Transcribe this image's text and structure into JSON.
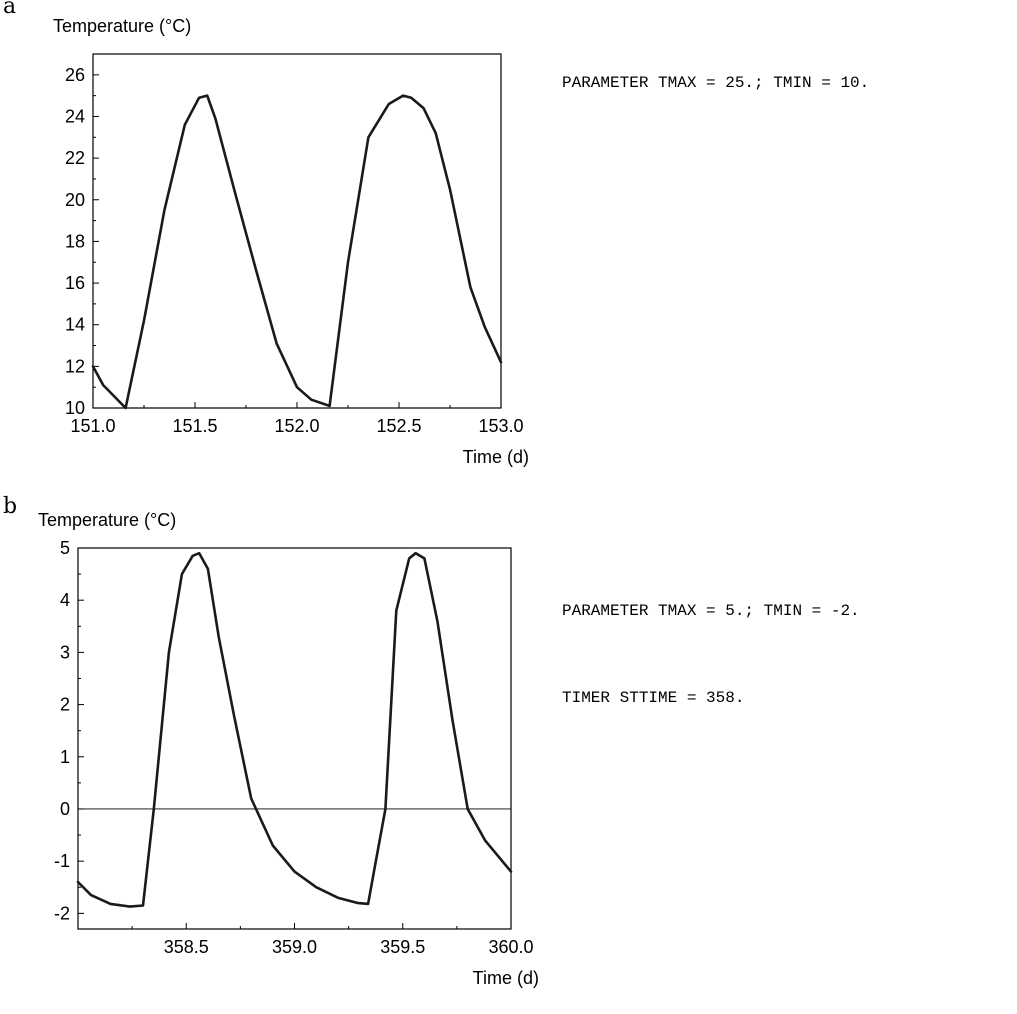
{
  "chart_data": [
    {
      "panel": "a",
      "type": "line",
      "ylabel": "Temperature (°C)",
      "xlabel": "Time (d)",
      "xlim": [
        151.0,
        153.0
      ],
      "ylim": [
        10,
        27
      ],
      "xticks": [
        "151.0",
        "151.5",
        "152.0",
        "152.5",
        "153.0"
      ],
      "xtick_values": [
        151.0,
        151.5,
        152.0,
        152.5,
        153.0
      ],
      "yticks": [
        "10",
        "12",
        "14",
        "16",
        "18",
        "20",
        "22",
        "24",
        "26"
      ],
      "ytick_values": [
        10,
        12,
        14,
        16,
        18,
        20,
        22,
        24,
        26
      ],
      "zero_line": false,
      "series": [
        {
          "x": [
            151.0,
            151.05,
            151.1,
            151.16,
            151.25,
            151.35,
            151.45,
            151.52,
            151.56,
            151.6,
            151.7,
            151.8,
            151.9,
            152.0,
            152.07,
            152.16,
            152.25,
            152.35,
            152.45,
            152.52,
            152.56,
            152.62,
            152.68,
            152.75,
            152.85,
            152.92,
            153.0
          ],
          "y": [
            12.0,
            11.1,
            10.6,
            10.0,
            14.2,
            19.5,
            23.6,
            24.9,
            25.0,
            23.9,
            20.2,
            16.6,
            13.1,
            11.0,
            10.4,
            10.1,
            17.0,
            23.0,
            24.6,
            25.0,
            24.9,
            24.4,
            23.2,
            20.5,
            15.8,
            13.9,
            12.2
          ]
        }
      ],
      "annotation": [
        "PARAMETER TMAX = 25.; TMIN = 10."
      ]
    },
    {
      "panel": "b",
      "type": "line",
      "ylabel": "Temperature (°C)",
      "xlabel": "Time (d)",
      "xlim": [
        358.0,
        360.0
      ],
      "ylim": [
        -2.3,
        5.0
      ],
      "xticks": [
        "358.5",
        "359.0",
        "359.5",
        "360.0"
      ],
      "xtick_values": [
        358.5,
        359.0,
        359.5,
        360.0
      ],
      "yticks": [
        "-2",
        "-1",
        "0",
        "1",
        "2",
        "3",
        "4",
        "5"
      ],
      "ytick_values": [
        -2,
        -1,
        0,
        1,
        2,
        3,
        4,
        5
      ],
      "zero_line": true,
      "series": [
        {
          "x": [
            358.0,
            358.06,
            358.15,
            358.24,
            358.3,
            358.35,
            358.42,
            358.48,
            358.53,
            358.56,
            358.6,
            358.65,
            358.72,
            358.8,
            358.9,
            359.0,
            359.1,
            359.2,
            359.29,
            359.34,
            359.38,
            359.42,
            359.47,
            359.53,
            359.56,
            359.6,
            359.66,
            359.73,
            359.8,
            359.88,
            360.0
          ],
          "y": [
            -1.4,
            -1.65,
            -1.82,
            -1.87,
            -1.85,
            0.0,
            3.0,
            4.5,
            4.85,
            4.9,
            4.6,
            3.3,
            1.8,
            0.2,
            -0.7,
            -1.2,
            -1.5,
            -1.7,
            -1.8,
            -1.82,
            -0.9,
            0.0,
            3.8,
            4.8,
            4.9,
            4.8,
            3.6,
            1.7,
            0.0,
            -0.6,
            -1.2
          ]
        }
      ],
      "annotation": [
        "PARAMETER TMAX = 5.; TMIN = -2.",
        "TIMER STTIME = 358."
      ]
    }
  ]
}
